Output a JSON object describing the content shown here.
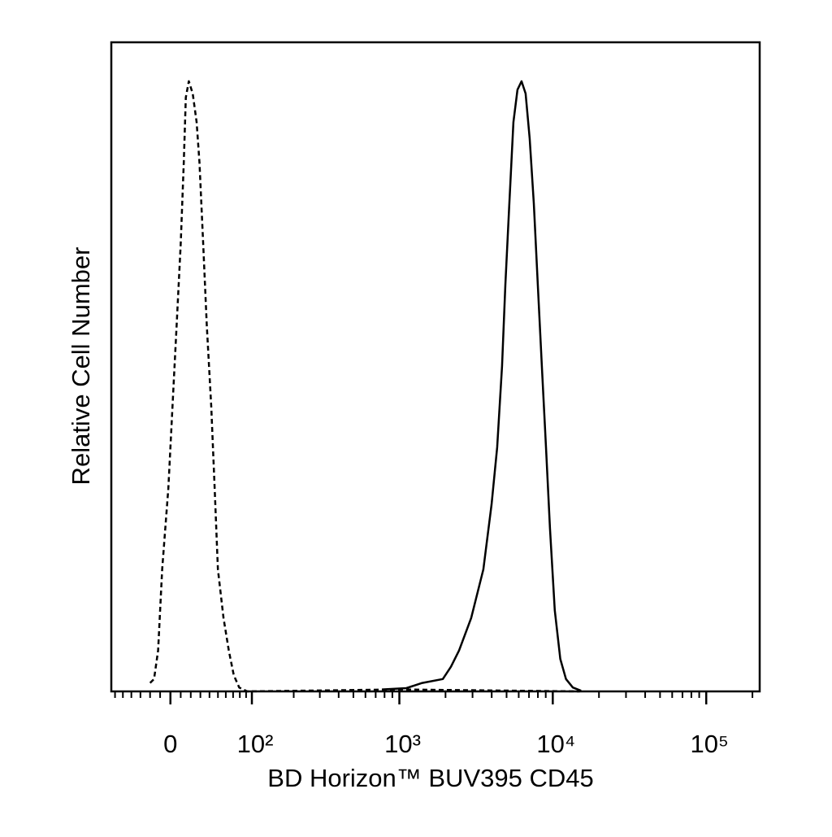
{
  "chart_data": {
    "type": "histogram-overlay",
    "xlabel": "BD Horizon™ BUV395 CD45",
    "ylabel": "Relative Cell Number",
    "xscale": "biexponential",
    "xlim": [
      -65,
      223000
    ],
    "ylim": [
      0,
      100
    ],
    "xticks": [
      0,
      {
        "value": 100,
        "label": "10²"
      },
      {
        "value": 1000,
        "label": "10³"
      },
      {
        "value": 10000,
        "label": "10⁴"
      },
      {
        "value": 100000,
        "label": "10⁵"
      }
    ],
    "xminorticks": [
      -60,
      -50,
      -40,
      -30,
      -20,
      -10,
      10,
      20,
      30,
      40,
      50,
      60,
      70,
      80,
      90,
      200,
      300,
      400,
      500,
      600,
      700,
      800,
      900,
      2000,
      3000,
      4000,
      5000,
      6000,
      7000,
      8000,
      9000,
      20000,
      30000,
      40000,
      50000,
      60000,
      70000,
      80000,
      90000,
      200000
    ],
    "series": [
      {
        "color": "#000000",
        "dash": true,
        "x": [
          -20,
          -16,
          -12,
          -8,
          -2,
          2,
          6,
          10,
          13,
          15,
          18,
          22,
          26,
          29,
          33,
          37,
          42,
          46,
          50,
          57,
          64,
          71,
          79,
          92,
          1000,
          15000
        ],
        "values": [
          1.3,
          1.9,
          6.3,
          18.8,
          31.3,
          43.9,
          56.4,
          68.9,
          81.5,
          91.5,
          94,
          92.1,
          87.7,
          81.5,
          68.9,
          56.4,
          43.9,
          31.3,
          18.8,
          11.3,
          6.3,
          2.5,
          0.6,
          0,
          0.3,
          0
        ]
      },
      {
        "color": "#000000",
        "dash": false,
        "x": [
          770,
          1110,
          1410,
          1920,
          2170,
          2450,
          2940,
          3530,
          3990,
          4340,
          4670,
          4910,
          5210,
          5540,
          5890,
          6260,
          6650,
          7070,
          7520,
          7990,
          8490,
          9030,
          9590,
          10300,
          11200,
          12200,
          13500,
          15300
        ],
        "values": [
          0.3,
          0.5,
          1.3,
          1.9,
          3.8,
          6.3,
          11.3,
          18.8,
          28.8,
          37.6,
          50.1,
          62.7,
          75.2,
          87.7,
          92.7,
          94,
          92.1,
          85.2,
          75.2,
          62.7,
          50.1,
          37.6,
          25.1,
          12.5,
          5,
          1.9,
          0.6,
          0.1
        ]
      }
    ]
  }
}
